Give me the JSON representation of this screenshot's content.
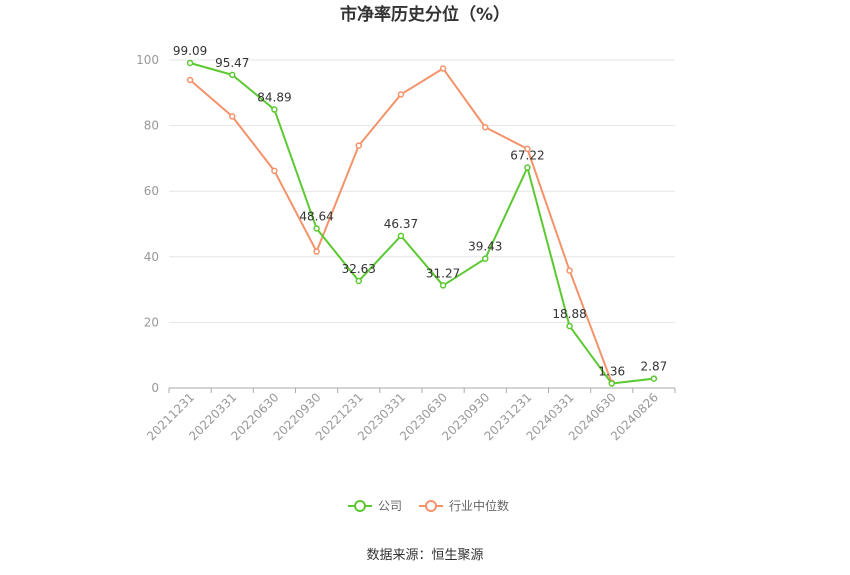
{
  "chart_data": {
    "type": "line",
    "title": "市净率历史分位（%）",
    "categories": [
      "20211231",
      "20220331",
      "20220630",
      "20220930",
      "20221231",
      "20230331",
      "20230630",
      "20230930",
      "20231231",
      "20240331",
      "20240630",
      "20240826"
    ],
    "ylim": [
      0,
      100
    ],
    "yticks": [
      "0",
      "20",
      "40",
      "60",
      "80",
      "100"
    ],
    "grid": true,
    "legend_position": "bottom",
    "series": [
      {
        "name": "公司",
        "color": "#5cc932",
        "values": [
          99.09,
          95.47,
          84.89,
          48.64,
          32.63,
          46.37,
          31.27,
          39.43,
          67.22,
          18.88,
          1.36,
          2.87
        ],
        "labels": [
          "99.09",
          "95.47",
          "84.89",
          "48.64",
          "32.63",
          "46.37",
          "31.27",
          "39.43",
          "67.22",
          "18.88",
          "1.36",
          "2.87"
        ]
      },
      {
        "name": "行业中位数",
        "color": "#f4936a",
        "values": [
          93.9,
          82.8,
          66.2,
          41.6,
          73.9,
          89.5,
          97.4,
          79.5,
          72.9,
          35.8,
          1.6,
          null
        ]
      }
    ]
  },
  "footer": {
    "source": "数据来源：恒生聚源"
  }
}
